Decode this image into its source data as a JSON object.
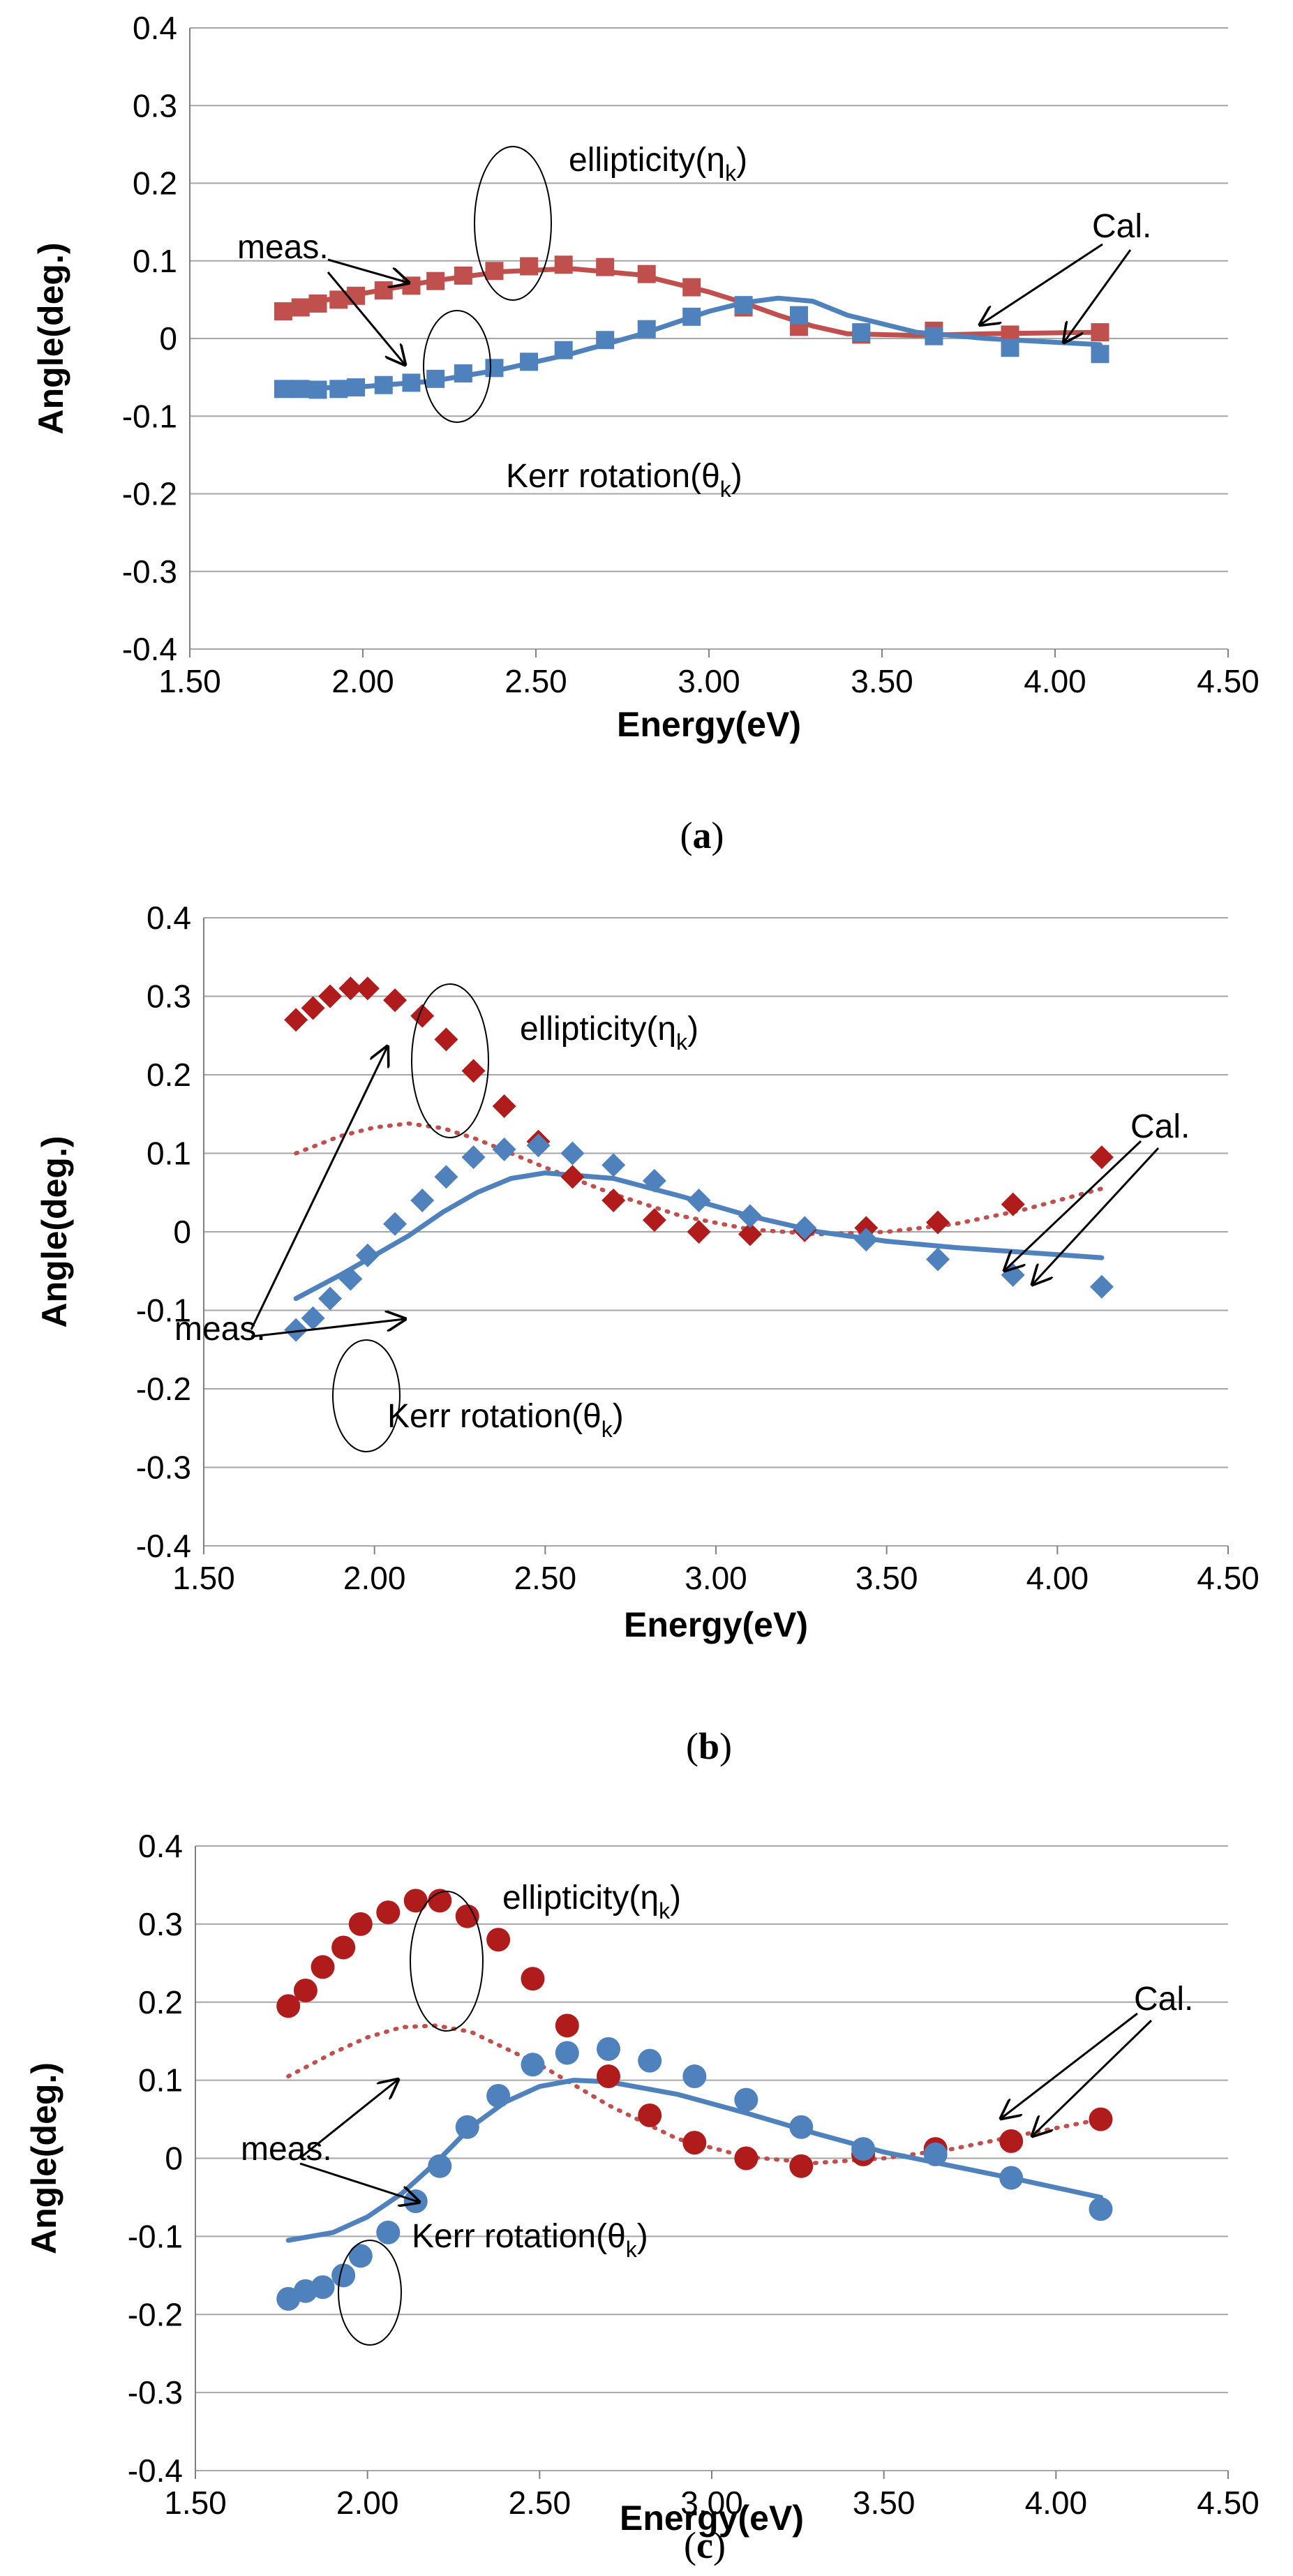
{
  "colors": {
    "ellipticity": "#c0504d",
    "ellipticity_dark": "#b01c1c",
    "kerr": "#4f81bd",
    "grid": "#a6a6a6",
    "axis": "#808080"
  },
  "chart_data": [
    {
      "type": "scatter",
      "caption": "(a)",
      "caption_letter": "a",
      "marker": "square",
      "xlabel": "Energy(eV)",
      "ylabel": "Angle(deg.)",
      "xlim": [
        1.5,
        4.5
      ],
      "ylim": [
        -0.4,
        0.4
      ],
      "xticks": [
        "1.50",
        "2.00",
        "2.50",
        "3.00",
        "3.50",
        "4.00",
        "4.50"
      ],
      "yticks": [
        "-0.4",
        "-0.3",
        "-0.2",
        "-0.1",
        "0",
        "0.1",
        "0.2",
        "0.3",
        "0.4"
      ],
      "series": [
        {
          "name": "ellipticity meas.",
          "kind": "points",
          "color": "#c0504d",
          "x": [
            1.77,
            1.82,
            1.87,
            1.93,
            1.98,
            2.06,
            2.14,
            2.21,
            2.29,
            2.38,
            2.48,
            2.58,
            2.7,
            2.82,
            2.95,
            3.1,
            3.26,
            3.44,
            3.65,
            3.87,
            4.13
          ],
          "y": [
            0.035,
            0.04,
            0.045,
            0.05,
            0.055,
            0.062,
            0.068,
            0.074,
            0.081,
            0.087,
            0.093,
            0.095,
            0.092,
            0.083,
            0.066,
            0.04,
            0.015,
            0.005,
            0.01,
            0.005,
            0.008
          ]
        },
        {
          "name": "Kerr rotation meas.",
          "kind": "points",
          "color": "#4f81bd",
          "x": [
            1.77,
            1.82,
            1.87,
            1.93,
            1.98,
            2.06,
            2.14,
            2.21,
            2.29,
            2.38,
            2.48,
            2.58,
            2.7,
            2.82,
            2.95,
            3.1,
            3.26,
            3.44,
            3.65,
            3.87,
            4.13
          ],
          "y": [
            -0.065,
            -0.065,
            -0.066,
            -0.065,
            -0.063,
            -0.06,
            -0.057,
            -0.052,
            -0.045,
            -0.038,
            -0.03,
            -0.015,
            -0.002,
            0.012,
            0.028,
            0.043,
            0.03,
            0.008,
            0.003,
            -0.012,
            -0.02
          ]
        },
        {
          "name": "ellipticity Cal.",
          "kind": "line",
          "style": "solid",
          "color": "#c0504d",
          "x": [
            1.77,
            2.0,
            2.2,
            2.4,
            2.6,
            2.8,
            3.0,
            3.1,
            3.2,
            3.3,
            3.4,
            3.6,
            3.8,
            4.13
          ],
          "y": [
            0.04,
            0.058,
            0.074,
            0.086,
            0.09,
            0.082,
            0.06,
            0.046,
            0.03,
            0.016,
            0.006,
            0.004,
            0.006,
            0.008
          ]
        },
        {
          "name": "Kerr rotation Cal.",
          "kind": "line",
          "style": "solid",
          "color": "#4f81bd",
          "x": [
            1.77,
            2.0,
            2.2,
            2.4,
            2.6,
            2.8,
            3.0,
            3.1,
            3.2,
            3.3,
            3.4,
            3.6,
            3.8,
            4.13
          ],
          "y": [
            -0.065,
            -0.062,
            -0.055,
            -0.04,
            -0.02,
            0.005,
            0.035,
            0.046,
            0.052,
            0.048,
            0.03,
            0.008,
            0.0,
            -0.008
          ]
        }
      ],
      "annotations": {
        "ellipticity_label": "ellipticity(η",
        "kerr_label": "Kerr  rotation(θ",
        "subscript": "k",
        "closing_paren": ")",
        "meas_label": "meas.",
        "cal_label": "Cal."
      }
    },
    {
      "type": "scatter",
      "caption": "(b)",
      "caption_letter": "b",
      "marker": "diamond",
      "xlabel": "Energy(eV)",
      "ylabel": "Angle(deg.)",
      "xlim": [
        1.5,
        4.5
      ],
      "ylim": [
        -0.4,
        0.4
      ],
      "xticks": [
        "1.50",
        "2.00",
        "2.50",
        "3.00",
        "3.50",
        "4.00",
        "4.50"
      ],
      "yticks": [
        "-0.4",
        "-0.3",
        "-0.2",
        "-0.1",
        "0",
        "0.1",
        "0.2",
        "0.3",
        "0.4"
      ],
      "series": [
        {
          "name": "ellipticity meas.",
          "kind": "points",
          "color": "#b01c1c",
          "x": [
            1.77,
            1.82,
            1.87,
            1.93,
            1.98,
            2.06,
            2.14,
            2.21,
            2.29,
            2.38,
            2.48,
            2.58,
            2.7,
            2.82,
            2.95,
            3.1,
            3.26,
            3.44,
            3.65,
            3.87,
            4.13
          ],
          "y": [
            0.27,
            0.285,
            0.3,
            0.31,
            0.31,
            0.295,
            0.275,
            0.245,
            0.205,
            0.16,
            0.115,
            0.07,
            0.04,
            0.015,
            0.0,
            -0.003,
            0.002,
            0.005,
            0.012,
            0.035,
            0.095
          ]
        },
        {
          "name": "Kerr rotation meas.",
          "kind": "points",
          "color": "#4f81bd",
          "x": [
            1.77,
            1.82,
            1.87,
            1.93,
            1.98,
            2.06,
            2.14,
            2.21,
            2.29,
            2.38,
            2.48,
            2.58,
            2.7,
            2.82,
            2.95,
            3.1,
            3.26,
            3.44,
            3.65,
            3.87,
            4.13
          ],
          "y": [
            -0.125,
            -0.11,
            -0.085,
            -0.06,
            -0.03,
            0.01,
            0.04,
            0.07,
            0.095,
            0.105,
            0.11,
            0.1,
            0.085,
            0.065,
            0.04,
            0.02,
            0.005,
            -0.01,
            -0.035,
            -0.055,
            -0.07
          ]
        },
        {
          "name": "ellipticity Cal.",
          "kind": "line",
          "style": "dotted",
          "color": "#c0504d",
          "x": [
            1.77,
            1.9,
            2.0,
            2.1,
            2.2,
            2.3,
            2.5,
            2.7,
            2.9,
            3.1,
            3.3,
            3.5,
            3.7,
            3.9,
            4.13
          ],
          "y": [
            0.1,
            0.122,
            0.133,
            0.138,
            0.132,
            0.118,
            0.082,
            0.048,
            0.02,
            0.003,
            -0.003,
            0.0,
            0.01,
            0.028,
            0.055
          ]
        },
        {
          "name": "Kerr rotation Cal.",
          "kind": "line",
          "style": "solid",
          "color": "#4f81bd",
          "x": [
            1.77,
            1.9,
            2.0,
            2.1,
            2.2,
            2.3,
            2.4,
            2.5,
            2.7,
            2.9,
            3.1,
            3.3,
            3.5,
            3.7,
            3.9,
            4.13
          ],
          "y": [
            -0.085,
            -0.055,
            -0.03,
            -0.005,
            0.025,
            0.05,
            0.068,
            0.075,
            0.068,
            0.045,
            0.02,
            0.0,
            -0.012,
            -0.02,
            -0.026,
            -0.033
          ]
        }
      ],
      "annotations": {
        "ellipticity_label": "ellipticity(η",
        "kerr_label": "Kerr  rotation(θ",
        "subscript": "k",
        "closing_paren": ")",
        "meas_label": "meas.",
        "cal_label": "Cal."
      }
    },
    {
      "type": "scatter",
      "caption": "(c)",
      "caption_letter": "c",
      "marker": "circle",
      "xlabel": "Energy(eV)",
      "ylabel": "Angle(deg.)",
      "xlim": [
        1.5,
        4.5
      ],
      "ylim": [
        -0.4,
        0.4
      ],
      "xticks": [
        "1.50",
        "2.00",
        "2.50",
        "3.00",
        "3.50",
        "4.00",
        "4.50"
      ],
      "yticks": [
        "-0.4",
        "-0.3",
        "-0.2",
        "-0.1",
        "0",
        "0.1",
        "0.2",
        "0.3",
        "0.4"
      ],
      "series": [
        {
          "name": "ellipticity meas.",
          "kind": "points",
          "color": "#b01c1c",
          "x": [
            1.77,
            1.82,
            1.87,
            1.93,
            1.98,
            2.06,
            2.14,
            2.21,
            2.29,
            2.38,
            2.48,
            2.58,
            2.7,
            2.82,
            2.95,
            3.1,
            3.26,
            3.44,
            3.65,
            3.87,
            4.13
          ],
          "y": [
            0.195,
            0.215,
            0.245,
            0.27,
            0.3,
            0.315,
            0.33,
            0.33,
            0.31,
            0.28,
            0.23,
            0.17,
            0.105,
            0.055,
            0.02,
            0.0,
            -0.01,
            0.005,
            0.012,
            0.022,
            0.05
          ]
        },
        {
          "name": "Kerr rotation meas.",
          "kind": "points",
          "color": "#4f81bd",
          "x": [
            1.77,
            1.82,
            1.87,
            1.93,
            1.98,
            2.06,
            2.14,
            2.21,
            2.29,
            2.38,
            2.48,
            2.58,
            2.7,
            2.82,
            2.95,
            3.1,
            3.26,
            3.44,
            3.65,
            3.87,
            4.13
          ],
          "y": [
            -0.18,
            -0.17,
            -0.165,
            -0.15,
            -0.125,
            -0.095,
            -0.055,
            -0.01,
            0.04,
            0.08,
            0.12,
            0.135,
            0.14,
            0.125,
            0.105,
            0.075,
            0.04,
            0.012,
            0.005,
            -0.025,
            -0.065
          ]
        },
        {
          "name": "ellipticity Cal.",
          "kind": "line",
          "style": "dotted",
          "color": "#c0504d",
          "x": [
            1.77,
            1.9,
            2.0,
            2.1,
            2.2,
            2.3,
            2.5,
            2.7,
            2.9,
            3.1,
            3.3,
            3.5,
            3.7,
            3.9,
            4.13
          ],
          "y": [
            0.105,
            0.135,
            0.155,
            0.168,
            0.17,
            0.162,
            0.12,
            0.068,
            0.025,
            0.002,
            -0.006,
            0.0,
            0.012,
            0.03,
            0.05
          ]
        },
        {
          "name": "Kerr rotation Cal.",
          "kind": "line",
          "style": "solid",
          "color": "#4f81bd",
          "x": [
            1.77,
            1.9,
            2.0,
            2.1,
            2.2,
            2.3,
            2.4,
            2.5,
            2.6,
            2.7,
            2.9,
            3.1,
            3.3,
            3.5,
            3.7,
            3.9,
            4.13
          ],
          "y": [
            -0.105,
            -0.095,
            -0.075,
            -0.045,
            -0.005,
            0.04,
            0.072,
            0.092,
            0.1,
            0.098,
            0.082,
            0.058,
            0.032,
            0.008,
            -0.01,
            -0.028,
            -0.05
          ]
        }
      ],
      "annotations": {
        "ellipticity_label": "ellipticity(η",
        "kerr_label": "Kerr  rotation(θ",
        "subscript": "k",
        "closing_paren": ")",
        "meas_label": "meas.",
        "cal_label": "Cal."
      }
    }
  ]
}
